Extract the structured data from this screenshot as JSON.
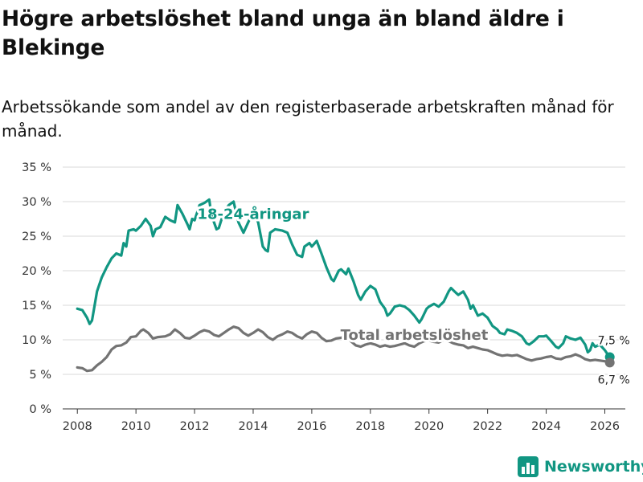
{
  "title": "Högre arbetslöshet bland unga än bland äldre i Blekinge",
  "subtitle": "Arbetssökande som andel av den registerbaserade arbetskraften månad för månad.",
  "brand": {
    "name": "Newsworthy",
    "color": "#119682"
  },
  "chart_data": {
    "type": "line",
    "title": "Högre arbetslöshet bland unga än bland äldre i Blekinge",
    "xlabel": "",
    "ylabel": "",
    "xlim": [
      2007.5,
      2026.7
    ],
    "ylim": [
      0,
      35
    ],
    "x_ticks": [
      2008,
      2010,
      2012,
      2014,
      2016,
      2018,
      2020,
      2022,
      2024,
      2026
    ],
    "y_ticks": [
      0,
      5,
      10,
      15,
      20,
      25,
      30,
      35
    ],
    "y_tick_labels": [
      "0 %",
      "5 %",
      "10 %",
      "15 %",
      "20 %",
      "25 %",
      "30 %",
      "35 %"
    ],
    "grid": true,
    "series": [
      {
        "name": "18-24-åringar",
        "color": "#119682",
        "end_label": "7,5 %",
        "points": [
          [
            2008.0,
            14.5
          ],
          [
            2008.17,
            14.3
          ],
          [
            2008.33,
            13.2
          ],
          [
            2008.42,
            12.3
          ],
          [
            2008.5,
            12.8
          ],
          [
            2008.67,
            17.0
          ],
          [
            2008.83,
            19.0
          ],
          [
            2009.0,
            20.5
          ],
          [
            2009.17,
            21.8
          ],
          [
            2009.33,
            22.5
          ],
          [
            2009.5,
            22.2
          ],
          [
            2009.58,
            24.0
          ],
          [
            2009.67,
            23.5
          ],
          [
            2009.75,
            25.8
          ],
          [
            2009.92,
            26.0
          ],
          [
            2010.0,
            25.8
          ],
          [
            2010.17,
            26.5
          ],
          [
            2010.33,
            27.5
          ],
          [
            2010.5,
            26.5
          ],
          [
            2010.58,
            25.0
          ],
          [
            2010.67,
            26.0
          ],
          [
            2010.83,
            26.3
          ],
          [
            2011.0,
            27.8
          ],
          [
            2011.17,
            27.3
          ],
          [
            2011.33,
            27.0
          ],
          [
            2011.42,
            29.5
          ],
          [
            2011.58,
            28.3
          ],
          [
            2011.75,
            26.8
          ],
          [
            2011.83,
            26.0
          ],
          [
            2011.92,
            27.5
          ],
          [
            2012.0,
            27.3
          ],
          [
            2012.17,
            29.5
          ],
          [
            2012.33,
            29.8
          ],
          [
            2012.5,
            30.3
          ],
          [
            2012.58,
            28.0
          ],
          [
            2012.75,
            26.0
          ],
          [
            2012.83,
            26.2
          ],
          [
            2013.0,
            28.5
          ],
          [
            2013.17,
            29.5
          ],
          [
            2013.33,
            30.0
          ],
          [
            2013.5,
            27.0
          ],
          [
            2013.67,
            25.5
          ],
          [
            2013.83,
            27.0
          ],
          [
            2014.0,
            28.5
          ],
          [
            2014.17,
            27.0
          ],
          [
            2014.33,
            23.5
          ],
          [
            2014.42,
            23.0
          ],
          [
            2014.5,
            22.8
          ],
          [
            2014.58,
            25.5
          ],
          [
            2014.75,
            26.0
          ],
          [
            2015.0,
            25.8
          ],
          [
            2015.17,
            25.5
          ],
          [
            2015.33,
            23.8
          ],
          [
            2015.5,
            22.3
          ],
          [
            2015.67,
            22.0
          ],
          [
            2015.75,
            23.5
          ],
          [
            2015.92,
            24.0
          ],
          [
            2016.0,
            23.5
          ],
          [
            2016.17,
            24.3
          ],
          [
            2016.33,
            22.5
          ],
          [
            2016.5,
            20.5
          ],
          [
            2016.67,
            18.8
          ],
          [
            2016.75,
            18.5
          ],
          [
            2016.92,
            20.0
          ],
          [
            2017.0,
            20.2
          ],
          [
            2017.17,
            19.5
          ],
          [
            2017.25,
            20.3
          ],
          [
            2017.42,
            18.5
          ],
          [
            2017.58,
            16.5
          ],
          [
            2017.67,
            15.8
          ],
          [
            2017.83,
            17.0
          ],
          [
            2018.0,
            17.8
          ],
          [
            2018.17,
            17.3
          ],
          [
            2018.33,
            15.5
          ],
          [
            2018.5,
            14.5
          ],
          [
            2018.58,
            13.5
          ],
          [
            2018.67,
            13.8
          ],
          [
            2018.83,
            14.8
          ],
          [
            2019.0,
            15.0
          ],
          [
            2019.17,
            14.8
          ],
          [
            2019.33,
            14.3
          ],
          [
            2019.5,
            13.5
          ],
          [
            2019.67,
            12.5
          ],
          [
            2019.75,
            13.0
          ],
          [
            2019.92,
            14.5
          ],
          [
            2020.0,
            14.8
          ],
          [
            2020.17,
            15.2
          ],
          [
            2020.33,
            14.8
          ],
          [
            2020.5,
            15.5
          ],
          [
            2020.67,
            17.0
          ],
          [
            2020.75,
            17.5
          ],
          [
            2020.92,
            16.8
          ],
          [
            2021.0,
            16.5
          ],
          [
            2021.17,
            17.0
          ],
          [
            2021.33,
            15.8
          ],
          [
            2021.42,
            14.5
          ],
          [
            2021.5,
            15.0
          ],
          [
            2021.67,
            13.5
          ],
          [
            2021.83,
            13.8
          ],
          [
            2022.0,
            13.2
          ],
          [
            2022.17,
            12.0
          ],
          [
            2022.33,
            11.5
          ],
          [
            2022.42,
            11.0
          ],
          [
            2022.58,
            10.8
          ],
          [
            2022.67,
            11.5
          ],
          [
            2022.83,
            11.3
          ],
          [
            2023.0,
            11.0
          ],
          [
            2023.17,
            10.5
          ],
          [
            2023.33,
            9.5
          ],
          [
            2023.42,
            9.3
          ],
          [
            2023.58,
            9.8
          ],
          [
            2023.75,
            10.5
          ],
          [
            2023.92,
            10.5
          ],
          [
            2024.0,
            10.6
          ],
          [
            2024.17,
            9.8
          ],
          [
            2024.33,
            9.0
          ],
          [
            2024.42,
            8.8
          ],
          [
            2024.58,
            9.5
          ],
          [
            2024.67,
            10.5
          ],
          [
            2024.83,
            10.2
          ],
          [
            2025.0,
            10.0
          ],
          [
            2025.17,
            10.3
          ],
          [
            2025.33,
            9.3
          ],
          [
            2025.42,
            8.2
          ],
          [
            2025.5,
            8.5
          ],
          [
            2025.58,
            9.5
          ],
          [
            2025.67,
            9.0
          ],
          [
            2025.83,
            9.3
          ],
          [
            2026.0,
            8.5
          ],
          [
            2026.08,
            8.0
          ],
          [
            2026.17,
            7.5
          ]
        ]
      },
      {
        "name": "Total arbetslöshet",
        "color": "#737373",
        "end_label": "6,7 %",
        "points": [
          [
            2008.0,
            6.0
          ],
          [
            2008.17,
            5.9
          ],
          [
            2008.33,
            5.5
          ],
          [
            2008.5,
            5.6
          ],
          [
            2008.67,
            6.3
          ],
          [
            2008.83,
            6.8
          ],
          [
            2009.0,
            7.5
          ],
          [
            2009.17,
            8.6
          ],
          [
            2009.33,
            9.1
          ],
          [
            2009.5,
            9.2
          ],
          [
            2009.67,
            9.6
          ],
          [
            2009.83,
            10.4
          ],
          [
            2010.0,
            10.5
          ],
          [
            2010.17,
            11.3
          ],
          [
            2010.25,
            11.5
          ],
          [
            2010.42,
            11.0
          ],
          [
            2010.58,
            10.2
          ],
          [
            2010.75,
            10.4
          ],
          [
            2011.0,
            10.5
          ],
          [
            2011.17,
            10.8
          ],
          [
            2011.33,
            11.5
          ],
          [
            2011.5,
            11.0
          ],
          [
            2011.67,
            10.3
          ],
          [
            2011.83,
            10.2
          ],
          [
            2012.0,
            10.6
          ],
          [
            2012.17,
            11.1
          ],
          [
            2012.33,
            11.4
          ],
          [
            2012.5,
            11.2
          ],
          [
            2012.67,
            10.7
          ],
          [
            2012.83,
            10.5
          ],
          [
            2013.0,
            11.0
          ],
          [
            2013.17,
            11.5
          ],
          [
            2013.33,
            11.9
          ],
          [
            2013.5,
            11.7
          ],
          [
            2013.67,
            11.0
          ],
          [
            2013.83,
            10.6
          ],
          [
            2014.0,
            11.0
          ],
          [
            2014.17,
            11.5
          ],
          [
            2014.33,
            11.1
          ],
          [
            2014.5,
            10.4
          ],
          [
            2014.67,
            10.0
          ],
          [
            2014.83,
            10.5
          ],
          [
            2015.0,
            10.8
          ],
          [
            2015.17,
            11.2
          ],
          [
            2015.33,
            11.0
          ],
          [
            2015.5,
            10.5
          ],
          [
            2015.67,
            10.2
          ],
          [
            2015.83,
            10.8
          ],
          [
            2016.0,
            11.2
          ],
          [
            2016.17,
            11.0
          ],
          [
            2016.33,
            10.3
          ],
          [
            2016.5,
            9.8
          ],
          [
            2016.67,
            9.9
          ],
          [
            2016.83,
            10.2
          ],
          [
            2017.0,
            10.3
          ],
          [
            2017.17,
            10.5
          ],
          [
            2017.33,
            9.8
          ],
          [
            2017.5,
            9.2
          ],
          [
            2017.67,
            9.0
          ],
          [
            2017.83,
            9.3
          ],
          [
            2018.0,
            9.5
          ],
          [
            2018.17,
            9.3
          ],
          [
            2018.33,
            9.0
          ],
          [
            2018.5,
            9.2
          ],
          [
            2018.67,
            9.0
          ],
          [
            2018.83,
            9.1
          ],
          [
            2019.0,
            9.3
          ],
          [
            2019.17,
            9.5
          ],
          [
            2019.33,
            9.2
          ],
          [
            2019.5,
            9.0
          ],
          [
            2019.67,
            9.5
          ],
          [
            2019.83,
            9.8
          ],
          [
            2020.0,
            9.9
          ],
          [
            2020.17,
            9.7
          ],
          [
            2020.33,
            9.6
          ],
          [
            2020.5,
            10.0
          ],
          [
            2020.67,
            9.8
          ],
          [
            2020.83,
            9.5
          ],
          [
            2021.0,
            9.3
          ],
          [
            2021.17,
            9.2
          ],
          [
            2021.33,
            8.8
          ],
          [
            2021.5,
            9.0
          ],
          [
            2021.67,
            8.8
          ],
          [
            2021.83,
            8.6
          ],
          [
            2022.0,
            8.5
          ],
          [
            2022.17,
            8.2
          ],
          [
            2022.33,
            7.9
          ],
          [
            2022.5,
            7.7
          ],
          [
            2022.67,
            7.8
          ],
          [
            2022.83,
            7.7
          ],
          [
            2023.0,
            7.8
          ],
          [
            2023.17,
            7.5
          ],
          [
            2023.33,
            7.2
          ],
          [
            2023.5,
            7.0
          ],
          [
            2023.67,
            7.2
          ],
          [
            2023.83,
            7.3
          ],
          [
            2024.0,
            7.5
          ],
          [
            2024.17,
            7.6
          ],
          [
            2024.33,
            7.3
          ],
          [
            2024.5,
            7.2
          ],
          [
            2024.67,
            7.5
          ],
          [
            2024.83,
            7.6
          ],
          [
            2025.0,
            7.9
          ],
          [
            2025.17,
            7.6
          ],
          [
            2025.33,
            7.2
          ],
          [
            2025.5,
            7.0
          ],
          [
            2025.67,
            7.1
          ],
          [
            2025.83,
            7.0
          ],
          [
            2026.0,
            6.9
          ],
          [
            2026.17,
            6.7
          ]
        ]
      }
    ],
    "annotations": [
      {
        "text": "18-24-åringar",
        "series": "18-24-åringar",
        "x": 2014.0,
        "y": 27.5
      },
      {
        "text": "Total arbetslöshet",
        "series": "Total arbetslöshet",
        "x": 2019.5,
        "y": 10.0
      }
    ]
  }
}
